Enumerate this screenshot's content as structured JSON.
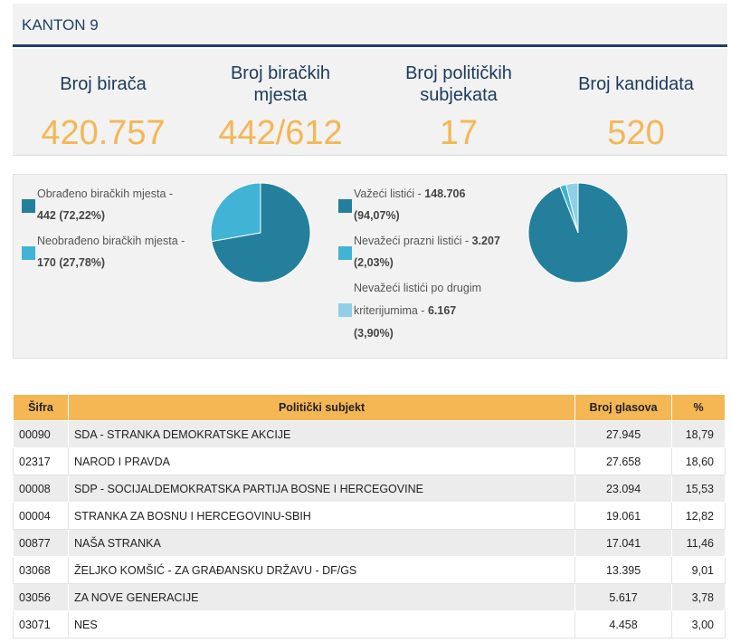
{
  "header": {
    "title": "KANTON 9"
  },
  "stats": [
    {
      "label": "Broj birača",
      "value": "420.757"
    },
    {
      "label": "Broj biračkih mjesta",
      "value": "442/612"
    },
    {
      "label": "Broj političkih subjekata",
      "value": "17"
    },
    {
      "label": "Broj kandidata",
      "value": "520"
    }
  ],
  "processing": {
    "items": [
      {
        "text": "Obrađeno biračkih mjesta -",
        "value": "442 (72,22%)",
        "color": "#237f9b",
        "share": 0.7222
      },
      {
        "text": "Neobrađeno biračkih mjesta -",
        "value": "170 (27,78%)",
        "color": "#41b3d5",
        "share": 0.2778
      }
    ]
  },
  "ballots": {
    "items": [
      {
        "text": "Važeći listići -",
        "value": "148.706",
        "pct": "(94,07%)",
        "color": "#237f9b",
        "share": 0.9407
      },
      {
        "text": "Nevažeći prazni listići -",
        "value": "3.207",
        "pct": "(2,03%)",
        "color": "#41b3d5",
        "share": 0.0203
      },
      {
        "text_line1": "Nevažeći listići po drugim",
        "text_line2": "kriterijumima -",
        "value": "6.167",
        "pct": "(3,90%)",
        "color": "#8fd0e6",
        "share": 0.039
      }
    ]
  },
  "table": {
    "columns": [
      "Šifra",
      "Politički subjekt",
      "Broj glasova",
      "%"
    ],
    "rows": [
      [
        "00090",
        "SDA - STRANKA DEMOKRATSKE AKCIJE",
        "27.945",
        "18,79"
      ],
      [
        "02317",
        "NAROD I PRAVDA",
        "27.658",
        "18,60"
      ],
      [
        "00008",
        "SDP - SOCIJALDEMOKRATSKA PARTIJA BOSNE I HERCEGOVINE",
        "23.094",
        "15,53"
      ],
      [
        "00004",
        "STRANKA ZA BOSNU I HERCEGOVINU-SBIH",
        "19.061",
        "12,82"
      ],
      [
        "00877",
        "NAŠA STRANKA",
        "17.041",
        "11,46"
      ],
      [
        "03068",
        "ŽELJKO KOMŠIĆ - ZA GRAĐANSKU DRŽAVU - DF/GS",
        "13.395",
        "9,01"
      ],
      [
        "03056",
        "ZA NOVE GENERACIJE",
        "5.617",
        "3,78"
      ],
      [
        "03071",
        "NES",
        "4.458",
        "3,00"
      ]
    ]
  }
}
